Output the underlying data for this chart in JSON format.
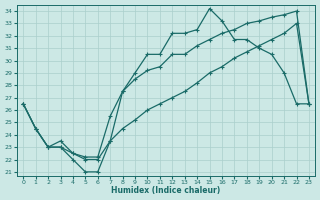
{
  "xlabel": "Humidex (Indice chaleur)",
  "bg_color": "#cce8e5",
  "line_color": "#1a6b68",
  "grid_color": "#aacfcc",
  "xlim": [
    -0.5,
    23.5
  ],
  "ylim_min": 20.7,
  "ylim_max": 34.5,
  "xticks": [
    0,
    1,
    2,
    3,
    4,
    5,
    6,
    7,
    8,
    9,
    10,
    11,
    12,
    13,
    14,
    15,
    16,
    17,
    18,
    19,
    20,
    21,
    22,
    23
  ],
  "yticks": [
    21,
    22,
    23,
    24,
    25,
    26,
    27,
    28,
    29,
    30,
    31,
    32,
    33,
    34
  ],
  "x": [
    0,
    1,
    2,
    3,
    4,
    5,
    6,
    7,
    8,
    9,
    10,
    11,
    12,
    13,
    14,
    15,
    16,
    17,
    18,
    19,
    20,
    21,
    22,
    23
  ],
  "y_curve1": [
    26.5,
    24.5,
    23.0,
    23.0,
    22.0,
    21.0,
    21.0,
    23.5,
    27.5,
    29.0,
    30.5,
    30.5,
    32.2,
    32.2,
    32.5,
    34.2,
    33.2,
    31.7,
    31.7,
    31.0,
    30.5,
    29.0,
    26.5,
    26.5
  ],
  "y_curve2": [
    26.5,
    24.5,
    23.0,
    23.5,
    22.5,
    22.2,
    22.2,
    25.5,
    27.5,
    28.5,
    29.2,
    29.5,
    30.5,
    30.5,
    31.2,
    31.7,
    32.2,
    32.5,
    33.0,
    33.2,
    33.5,
    33.7,
    34.0,
    26.5
  ],
  "y_curve3": [
    26.5,
    24.5,
    23.0,
    23.0,
    22.5,
    22.0,
    22.0,
    23.5,
    24.5,
    25.2,
    26.0,
    26.5,
    27.0,
    27.5,
    28.2,
    29.0,
    29.5,
    30.2,
    30.7,
    31.2,
    31.7,
    32.2,
    33.0,
    26.5
  ]
}
